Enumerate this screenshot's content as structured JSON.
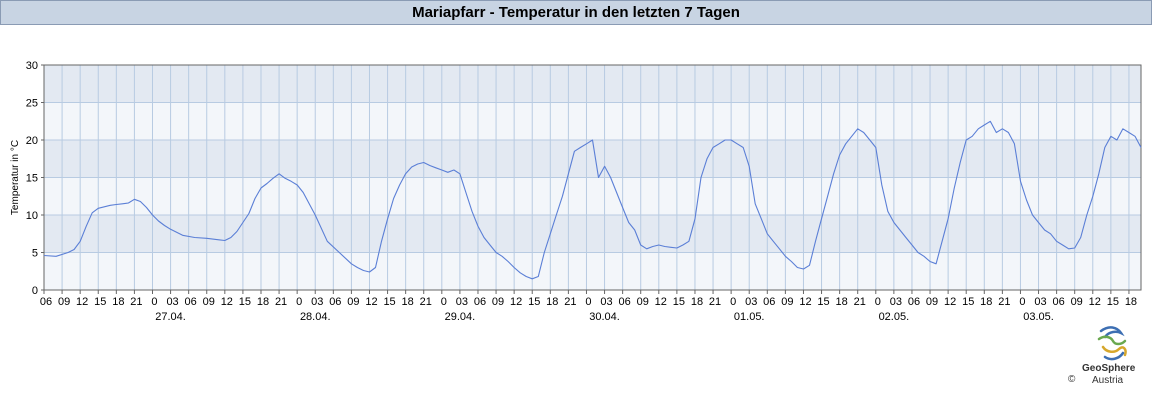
{
  "title": "Mariapfarr - Temperatur in den letzten 7 Tagen",
  "logo": {
    "name": "GeoSphere",
    "sub": "Austria",
    "copyright": "©"
  },
  "colors": {
    "line": "#5b7fd6",
    "band_dark": "#e3e9f2",
    "band_light": "#f3f6fa",
    "grid": "#b8cbe2",
    "title_bg": "#c8d4e3"
  },
  "chart_data": {
    "type": "line",
    "title": "Mariapfarr - Temperatur in den letzten 7 Tagen",
    "ylabel": "Temperatur in °C",
    "xlabel": "",
    "ylim": [
      0,
      30
    ],
    "y_ticks": [
      0,
      5,
      10,
      15,
      20,
      25,
      30
    ],
    "grid": true,
    "x_unit": "hours since 26.04. 00:00",
    "xlim": [
      3,
      185
    ],
    "hour_ticks": [
      "06",
      "09",
      "12",
      "15",
      "18",
      "21",
      "0",
      "03",
      "06",
      "09",
      "12",
      "15",
      "18",
      "21",
      "0",
      "03",
      "06",
      "09",
      "12",
      "15",
      "18",
      "21",
      "0",
      "03",
      "06",
      "09",
      "12",
      "15",
      "18",
      "21",
      "0",
      "03",
      "06",
      "09",
      "12",
      "15",
      "18",
      "21",
      "0",
      "03",
      "06",
      "09",
      "12",
      "15",
      "18",
      "21",
      "0",
      "03",
      "06",
      "09",
      "12",
      "15",
      "18",
      "21",
      "0",
      "03",
      "06",
      "09",
      "12",
      "15",
      "18"
    ],
    "date_labels": [
      "27.04.",
      "28.04.",
      "29.04.",
      "30.04.",
      "01.05.",
      "02.05.",
      "03.05."
    ],
    "series": [
      {
        "x": [
          3,
          5,
          7,
          8,
          9,
          10,
          11,
          12,
          13,
          14,
          15,
          16,
          17,
          18,
          19,
          20,
          21,
          22,
          23,
          24,
          26,
          28,
          30,
          32,
          33,
          34,
          35,
          36,
          37,
          38,
          39,
          40,
          41,
          42,
          43,
          44,
          45,
          46,
          47,
          48,
          50,
          52,
          54,
          55,
          56,
          57,
          58,
          59,
          60,
          61,
          62,
          63,
          64,
          65,
          66,
          67,
          68,
          69,
          70,
          71,
          72,
          73,
          74,
          75,
          76,
          77,
          78,
          79,
          80,
          81,
          82,
          83,
          84,
          85,
          86,
          87,
          88,
          89,
          90,
          91,
          92,
          93,
          94,
          95,
          96,
          97,
          98,
          99,
          100,
          101,
          102,
          103,
          104,
          105,
          106,
          107,
          108,
          109,
          110,
          111,
          112,
          113,
          114,
          115,
          116,
          117,
          118,
          119,
          120,
          121,
          122,
          123,
          124,
          125,
          126,
          127,
          128,
          129,
          130,
          131,
          132,
          133,
          134,
          135,
          136,
          137,
          138,
          139,
          140,
          141,
          142,
          143,
          144,
          145,
          146,
          147,
          148,
          149,
          150,
          151,
          152,
          153,
          154,
          155,
          156,
          157,
          158,
          159,
          160,
          161,
          162,
          163,
          164,
          165,
          166,
          167,
          168,
          169,
          170,
          171,
          172,
          173,
          174,
          175,
          176,
          177,
          178,
          179,
          180,
          181,
          182,
          183,
          184,
          185
        ],
        "y": [
          4.6,
          4.5,
          5.0,
          5.4,
          6.5,
          8.5,
          10.3,
          10.9,
          11.1,
          11.3,
          11.4,
          11.5,
          11.6,
          12.1,
          11.8,
          11.0,
          10.0,
          9.2,
          8.6,
          8.1,
          7.3,
          7.0,
          6.9,
          6.7,
          6.6,
          7.0,
          7.8,
          9.0,
          10.2,
          12.2,
          13.6,
          14.2,
          14.9,
          15.5,
          14.9,
          14.5,
          14.0,
          13.0,
          11.5,
          10.0,
          6.5,
          5.0,
          3.5,
          3.0,
          2.6,
          2.4,
          3.0,
          6.5,
          9.5,
          12.2,
          14.0,
          15.5,
          16.4,
          16.8,
          17.0,
          16.6,
          16.3,
          16.0,
          15.7,
          16.0,
          15.5,
          13.0,
          10.5,
          8.5,
          7.0,
          6.0,
          5.0,
          4.5,
          3.8,
          3.0,
          2.3,
          1.8,
          1.5,
          1.8,
          5.0,
          7.5,
          10.0,
          12.5,
          15.5,
          18.5,
          19.0,
          19.5,
          20.0,
          15.0,
          16.5,
          15.0,
          13.0,
          11.0,
          9.0,
          8.0,
          6.0,
          5.5,
          5.8,
          6.0,
          5.8,
          5.7,
          5.6,
          6.0,
          6.5,
          9.5,
          15.0,
          17.5,
          19.0,
          19.5,
          20.0,
          20.0,
          19.5,
          19.0,
          16.5,
          11.5,
          9.5,
          7.5,
          6.5,
          5.5,
          4.5,
          3.8,
          3.0,
          2.8,
          3.3,
          6.5,
          9.5,
          12.5,
          15.5,
          18.0,
          19.5,
          20.5,
          21.5,
          21.0,
          20.0,
          19.0,
          14.0,
          10.5,
          9.0,
          8.0,
          7.0,
          6.0,
          5.0,
          4.5,
          3.8,
          3.5,
          6.5,
          9.5,
          13.5,
          17.0,
          20.0,
          20.5,
          21.5,
          22.0,
          22.5,
          21.0,
          21.5,
          21.0,
          19.5,
          14.5,
          12.0,
          10.0,
          9.0,
          8.0,
          7.5,
          6.5,
          6.0,
          5.5,
          5.6,
          7.0,
          10.0,
          12.5,
          15.5,
          19.0,
          20.5,
          20.0,
          21.5,
          21.0,
          20.5,
          19.0
        ]
      }
    ]
  }
}
